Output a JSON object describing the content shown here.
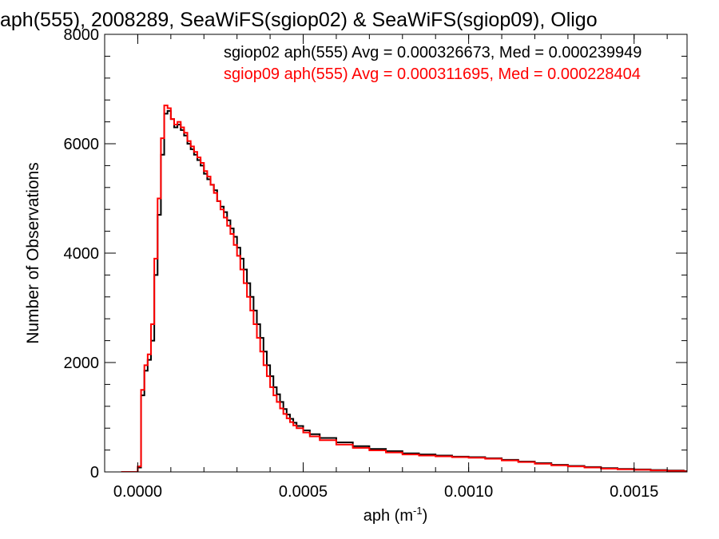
{
  "chart_data": {
    "type": "line",
    "title": "aph(555), 2008289, SeaWiFS(sgiop02) & SeaWiFS(sgiop09), Oligo",
    "xlabel": "aph (m",
    "xlabel_sup": "-1",
    "xlabel_close": ")",
    "ylabel": "Number of Observations",
    "xlim": [
      -0.0001,
      0.00166
    ],
    "ylim": [
      0,
      8000
    ],
    "x_ticks": [
      0.0,
      0.0005,
      0.001,
      0.0015
    ],
    "x_tick_labels": [
      "0.0000",
      "0.0005",
      "0.0010",
      "0.0015"
    ],
    "y_ticks": [
      0,
      2000,
      4000,
      6000,
      8000
    ],
    "y_tick_labels": [
      "0",
      "2000",
      "4000",
      "6000",
      "8000"
    ],
    "grid": false,
    "legend_position": "top-right",
    "series": [
      {
        "name": "sgiop02 aph(555) Avg = 0.000326673, Med = 0.000239949",
        "color": "#000000",
        "points": [
          [
            -5e-05,
            0
          ],
          [
            -2e-05,
            0
          ],
          [
            -1e-05,
            0
          ],
          [
            0.0,
            80
          ],
          [
            1e-05,
            1400
          ],
          [
            2e-05,
            1850
          ],
          [
            3e-05,
            2050
          ],
          [
            4e-05,
            2400
          ],
          [
            5e-05,
            3600
          ],
          [
            6e-05,
            4700
          ],
          [
            7e-05,
            5800
          ],
          [
            8e-05,
            6550
          ],
          [
            9e-05,
            6600
          ],
          [
            0.0001,
            6450
          ],
          [
            0.00011,
            6300
          ],
          [
            0.00012,
            6350
          ],
          [
            0.00013,
            6250
          ],
          [
            0.00014,
            6150
          ],
          [
            0.00015,
            6000
          ],
          [
            0.00016,
            5900
          ],
          [
            0.00017,
            5800
          ],
          [
            0.00018,
            5700
          ],
          [
            0.00019,
            5600
          ],
          [
            0.0002,
            5450
          ],
          [
            0.00021,
            5350
          ],
          [
            0.00022,
            5250
          ],
          [
            0.00023,
            5150
          ],
          [
            0.00024,
            4950
          ],
          [
            0.00025,
            4850
          ],
          [
            0.00026,
            4750
          ],
          [
            0.00027,
            4600
          ],
          [
            0.00028,
            4450
          ],
          [
            0.00029,
            4300
          ],
          [
            0.0003,
            4100
          ],
          [
            0.00031,
            3900
          ],
          [
            0.00032,
            3700
          ],
          [
            0.00033,
            3450
          ],
          [
            0.00034,
            3200
          ],
          [
            0.00035,
            2950
          ],
          [
            0.00036,
            2700
          ],
          [
            0.00037,
            2450
          ],
          [
            0.00038,
            2200
          ],
          [
            0.00039,
            1950
          ],
          [
            0.0004,
            1750
          ],
          [
            0.00041,
            1550
          ],
          [
            0.00042,
            1420
          ],
          [
            0.00043,
            1280
          ],
          [
            0.00044,
            1150
          ],
          [
            0.00045,
            1050
          ],
          [
            0.00046,
            970
          ],
          [
            0.00047,
            900
          ],
          [
            0.00048,
            840
          ],
          [
            0.0005,
            760
          ],
          [
            0.00052,
            690
          ],
          [
            0.00055,
            620
          ],
          [
            0.0006,
            540
          ],
          [
            0.00065,
            470
          ],
          [
            0.0007,
            420
          ],
          [
            0.00075,
            380
          ],
          [
            0.0008,
            340
          ],
          [
            0.00085,
            320
          ],
          [
            0.0009,
            300
          ],
          [
            0.00095,
            280
          ],
          [
            0.001,
            270
          ],
          [
            0.00105,
            250
          ],
          [
            0.0011,
            220
          ],
          [
            0.00115,
            190
          ],
          [
            0.0012,
            160
          ],
          [
            0.00125,
            130
          ],
          [
            0.0013,
            110
          ],
          [
            0.00135,
            90
          ],
          [
            0.0014,
            70
          ],
          [
            0.00145,
            55
          ],
          [
            0.0015,
            45
          ],
          [
            0.00155,
            35
          ],
          [
            0.0016,
            25
          ],
          [
            0.00165,
            15
          ]
        ]
      },
      {
        "name": "sgiop09 aph(555) Avg = 0.000311695, Med = 0.000228404",
        "color": "#ff0000",
        "points": [
          [
            -5e-05,
            0
          ],
          [
            -2e-05,
            0
          ],
          [
            -1e-05,
            0
          ],
          [
            0.0,
            100
          ],
          [
            1e-05,
            1500
          ],
          [
            2e-05,
            1950
          ],
          [
            3e-05,
            2150
          ],
          [
            4e-05,
            2700
          ],
          [
            5e-05,
            3900
          ],
          [
            6e-05,
            5000
          ],
          [
            7e-05,
            6100
          ],
          [
            8e-05,
            6700
          ],
          [
            9e-05,
            6650
          ],
          [
            0.0001,
            6450
          ],
          [
            0.00011,
            6350
          ],
          [
            0.00012,
            6400
          ],
          [
            0.00013,
            6300
          ],
          [
            0.00014,
            6200
          ],
          [
            0.00015,
            6050
          ],
          [
            0.00016,
            5950
          ],
          [
            0.00017,
            5850
          ],
          [
            0.00018,
            5750
          ],
          [
            0.00019,
            5650
          ],
          [
            0.0002,
            5500
          ],
          [
            0.00021,
            5400
          ],
          [
            0.00022,
            5250
          ],
          [
            0.00023,
            5100
          ],
          [
            0.00024,
            4950
          ],
          [
            0.00025,
            4800
          ],
          [
            0.00026,
            4650
          ],
          [
            0.00027,
            4500
          ],
          [
            0.00028,
            4350
          ],
          [
            0.00029,
            4150
          ],
          [
            0.0003,
            3950
          ],
          [
            0.00031,
            3700
          ],
          [
            0.00032,
            3450
          ],
          [
            0.00033,
            3200
          ],
          [
            0.00034,
            2950
          ],
          [
            0.00035,
            2700
          ],
          [
            0.00036,
            2450
          ],
          [
            0.00037,
            2200
          ],
          [
            0.00038,
            1950
          ],
          [
            0.00039,
            1750
          ],
          [
            0.0004,
            1550
          ],
          [
            0.00041,
            1400
          ],
          [
            0.00042,
            1280
          ],
          [
            0.00043,
            1160
          ],
          [
            0.00044,
            1060
          ],
          [
            0.00045,
            980
          ],
          [
            0.00046,
            910
          ],
          [
            0.00047,
            850
          ],
          [
            0.00048,
            800
          ],
          [
            0.0005,
            720
          ],
          [
            0.00052,
            650
          ],
          [
            0.00055,
            580
          ],
          [
            0.0006,
            500
          ],
          [
            0.00065,
            440
          ],
          [
            0.0007,
            395
          ],
          [
            0.00075,
            355
          ],
          [
            0.0008,
            320
          ],
          [
            0.00085,
            300
          ],
          [
            0.0009,
            285
          ],
          [
            0.00095,
            270
          ],
          [
            0.001,
            260
          ],
          [
            0.00105,
            240
          ],
          [
            0.0011,
            210
          ],
          [
            0.00115,
            180
          ],
          [
            0.0012,
            150
          ],
          [
            0.00125,
            120
          ],
          [
            0.0013,
            100
          ],
          [
            0.00135,
            80
          ],
          [
            0.0014,
            60
          ],
          [
            0.00145,
            48
          ],
          [
            0.0015,
            38
          ],
          [
            0.00155,
            28
          ],
          [
            0.0016,
            18
          ],
          [
            0.00165,
            10
          ]
        ]
      }
    ]
  }
}
